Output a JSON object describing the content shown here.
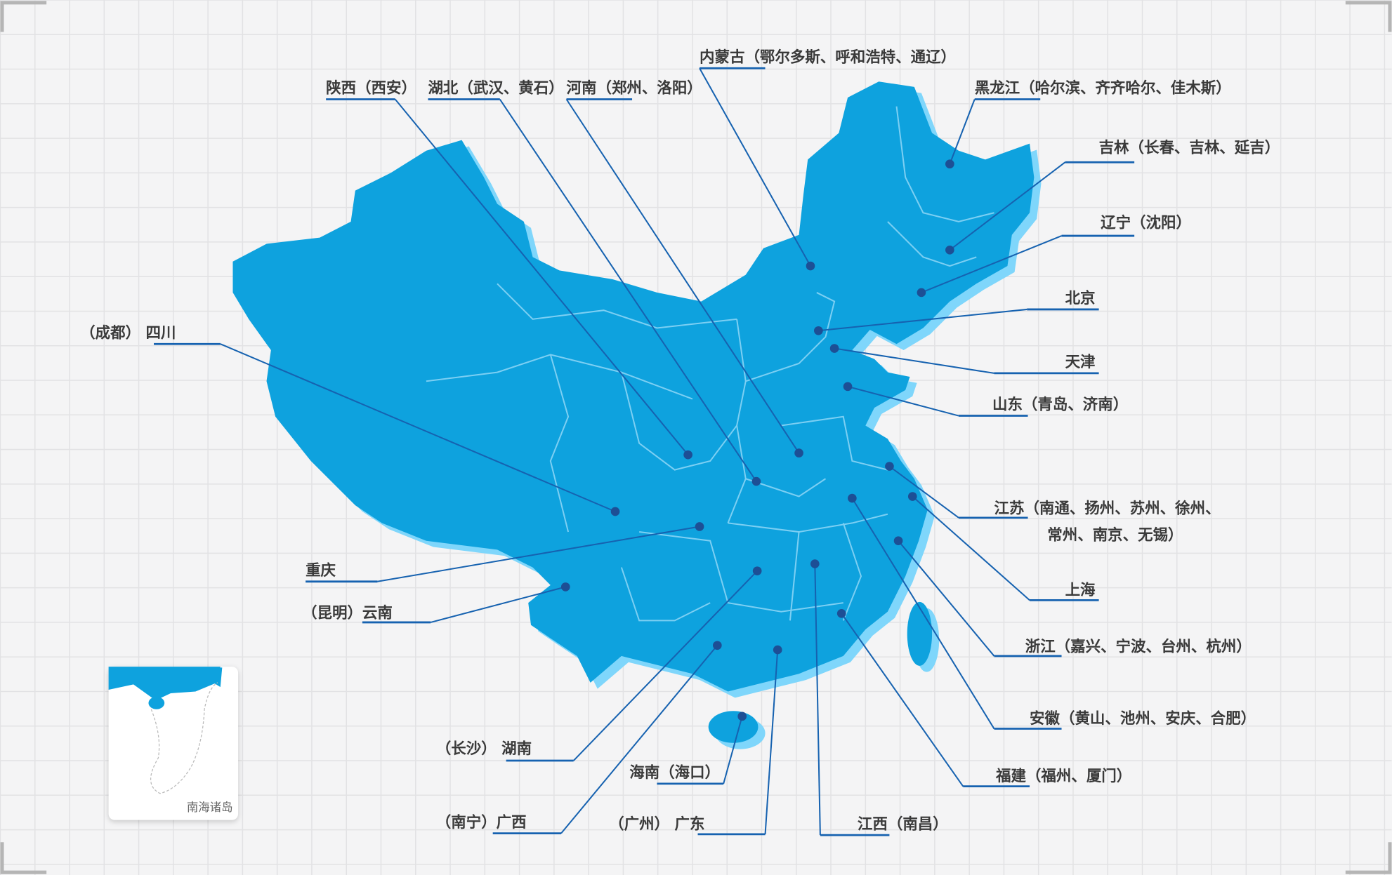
{
  "map": {
    "colors": {
      "land": "#0ea2de",
      "shadow": "#7fd6fb",
      "border": "#7ccff3",
      "leader": "#1662b0",
      "dot": "#1d4f95",
      "label": "#3a3a3a"
    },
    "labels": [
      {
        "text": "内蒙古（鄂尔多斯、呼和浩特、通辽）"
      },
      {
        "text": "陕西（西安）"
      },
      {
        "text": "湖北（武汉、黄石）"
      },
      {
        "text": "河南（郑州、洛阳）"
      },
      {
        "text": "黑龙江（哈尔滨、齐齐哈尔、佳木斯）"
      },
      {
        "text": "吉林（长春、吉林、延吉）"
      },
      {
        "text": "辽宁（沈阳）"
      },
      {
        "text": "北京"
      },
      {
        "text": "天津"
      },
      {
        "text": "山东（青岛、济南）"
      },
      {
        "text": "江苏（南通、扬州、苏州、徐州、"
      },
      {
        "text": "常州、南京、无锡）"
      },
      {
        "text": "上海"
      },
      {
        "text": "浙江（嘉兴、宁波、台州、杭州）"
      },
      {
        "text": "安徽（黄山、池州、安庆、合肥）"
      },
      {
        "text": "福建（福州、厦门）"
      },
      {
        "text": "江西（南昌）"
      },
      {
        "text": "（广州） 广东"
      },
      {
        "text": "海南（海口）"
      },
      {
        "text": "（南宁）广西"
      },
      {
        "text": "（长沙） 湖南"
      },
      {
        "text": "（昆明）云南"
      },
      {
        "text": "重庆"
      },
      {
        "text": "（成都） 四川"
      }
    ],
    "inset": {
      "label": "南海诸岛"
    }
  }
}
